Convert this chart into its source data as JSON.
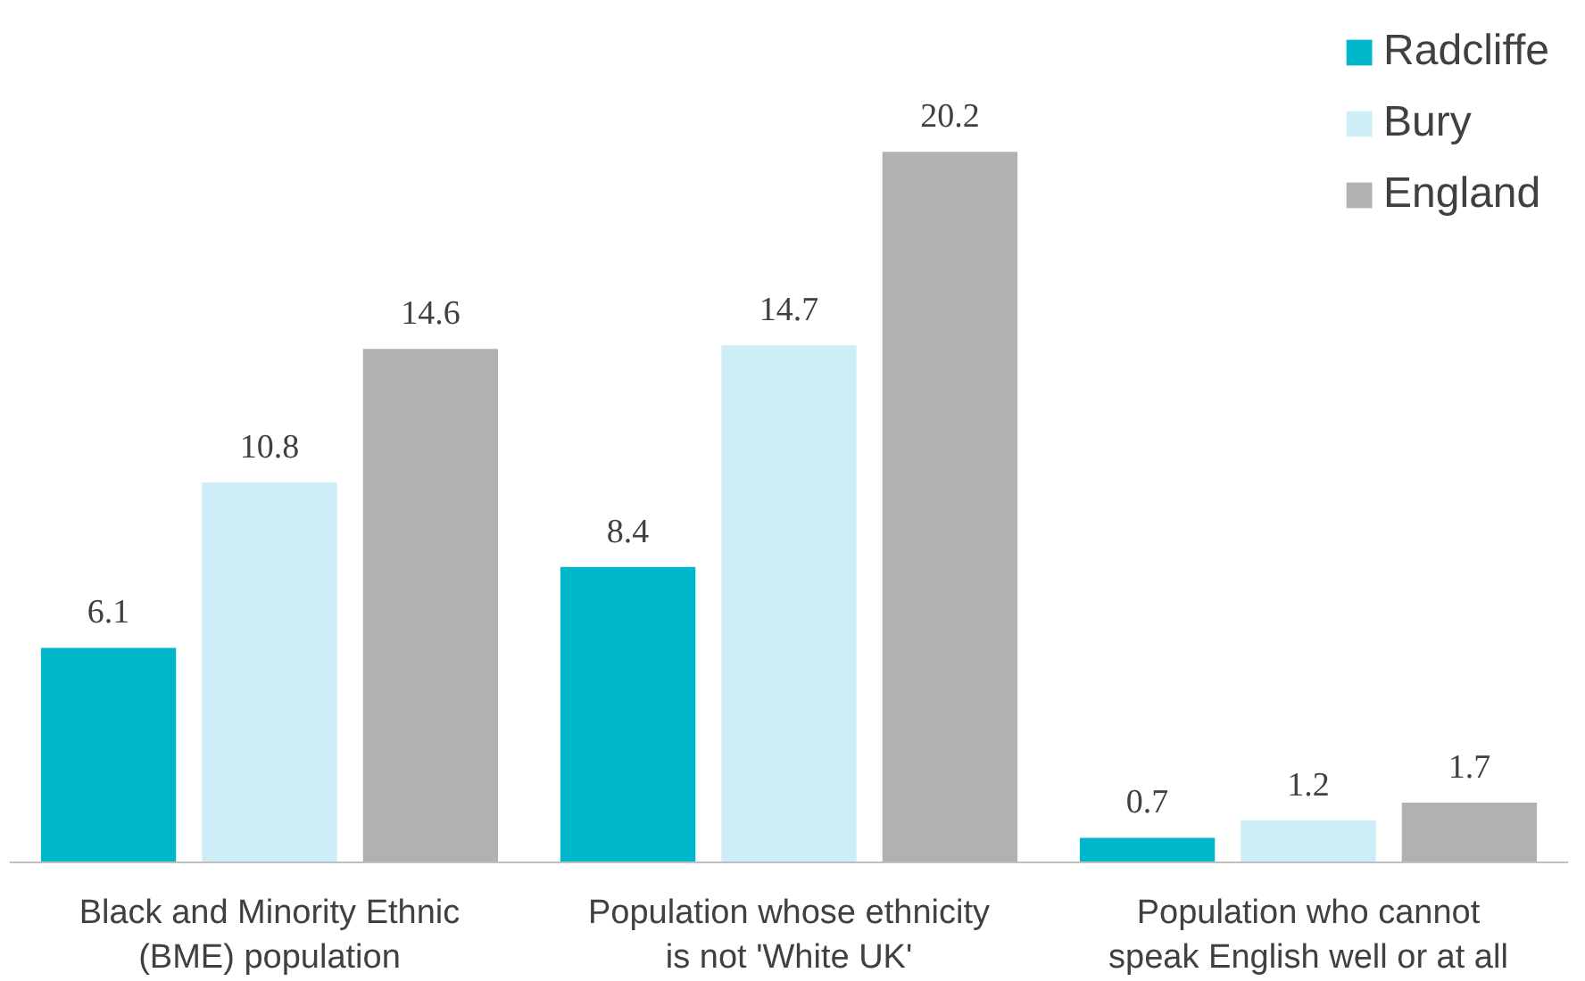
{
  "chart_data": {
    "type": "bar",
    "categories": [
      "Black and Minority Ethnic\n(BME) population",
      "Population whose ethnicity\nis not 'White UK'",
      "Population who cannot\nspeak English well or at all"
    ],
    "series": [
      {
        "name": "Radcliffe",
        "color": "#00b6cb",
        "values": [
          6.1,
          8.4,
          0.7
        ]
      },
      {
        "name": "Bury",
        "color": "#cdeef6",
        "values": [
          10.8,
          14.7,
          1.2
        ]
      },
      {
        "name": "England",
        "color": "#b0b1b3",
        "values": [
          14.6,
          20.2,
          1.7
        ]
      }
    ],
    "data_labels": true,
    "legend": "top right",
    "grid": false,
    "tick_labels": "x"
  }
}
